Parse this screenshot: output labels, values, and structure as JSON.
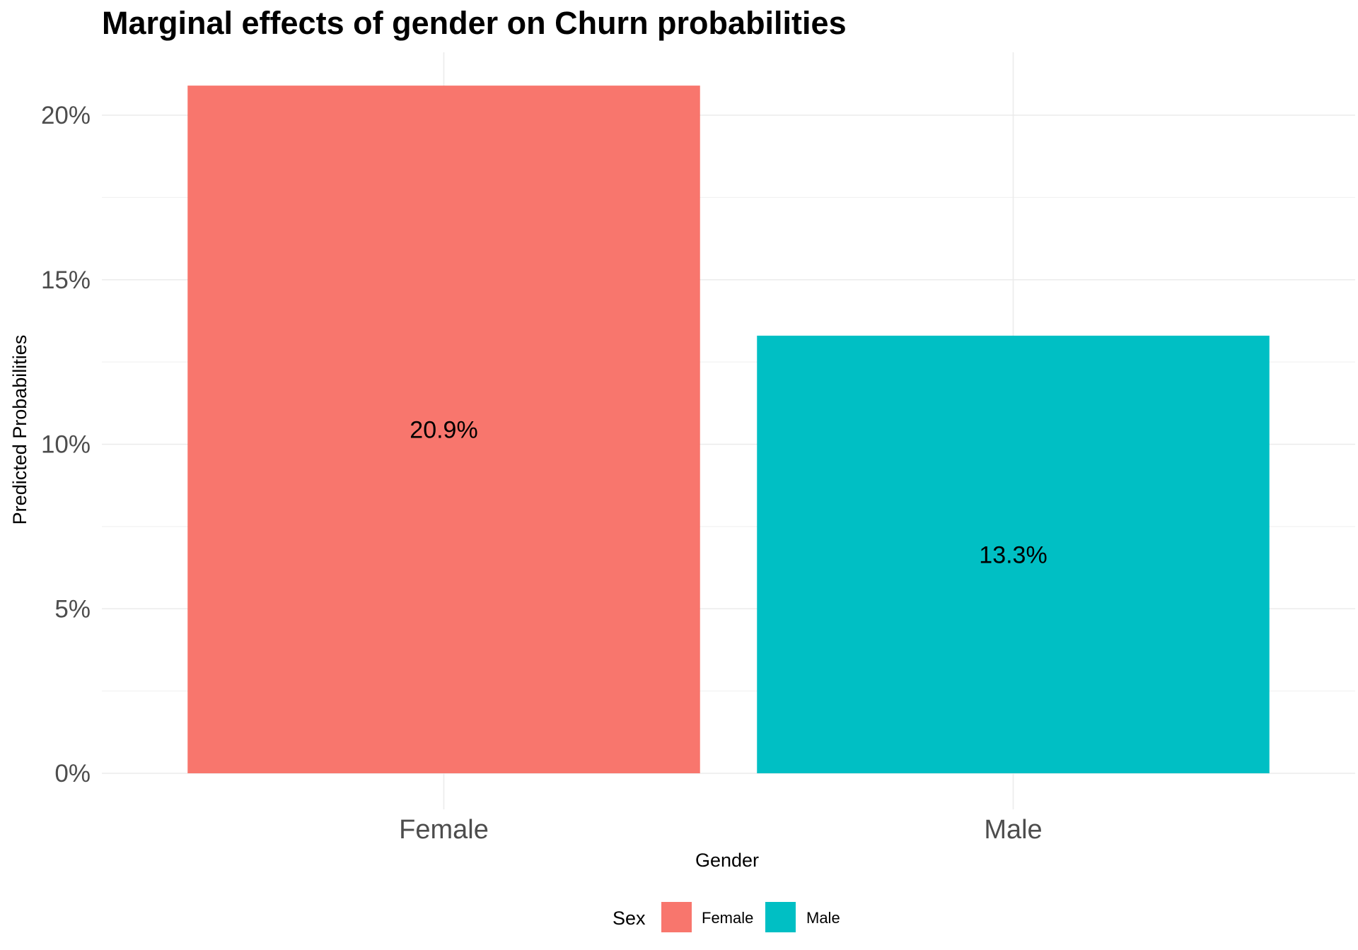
{
  "chart_data": {
    "type": "bar",
    "title": "Marginal effects of gender on Churn probabilities",
    "xlabel": "Gender",
    "ylabel": "Predicted Probabilities",
    "categories": [
      "Female",
      "Male"
    ],
    "values": [
      20.9,
      13.3
    ],
    "value_labels": [
      "20.9%",
      "13.3%"
    ],
    "colors": [
      "#F8766D",
      "#00BFC4"
    ],
    "ylim": [
      0,
      22
    ],
    "yticks": [
      0,
      5,
      10,
      15,
      20
    ],
    "ytick_labels": [
      "0%",
      "5%",
      "10%",
      "15%",
      "20%"
    ],
    "grid": true,
    "legend": {
      "title": "Sex",
      "position": "bottom",
      "entries": [
        "Female",
        "Male"
      ]
    }
  }
}
